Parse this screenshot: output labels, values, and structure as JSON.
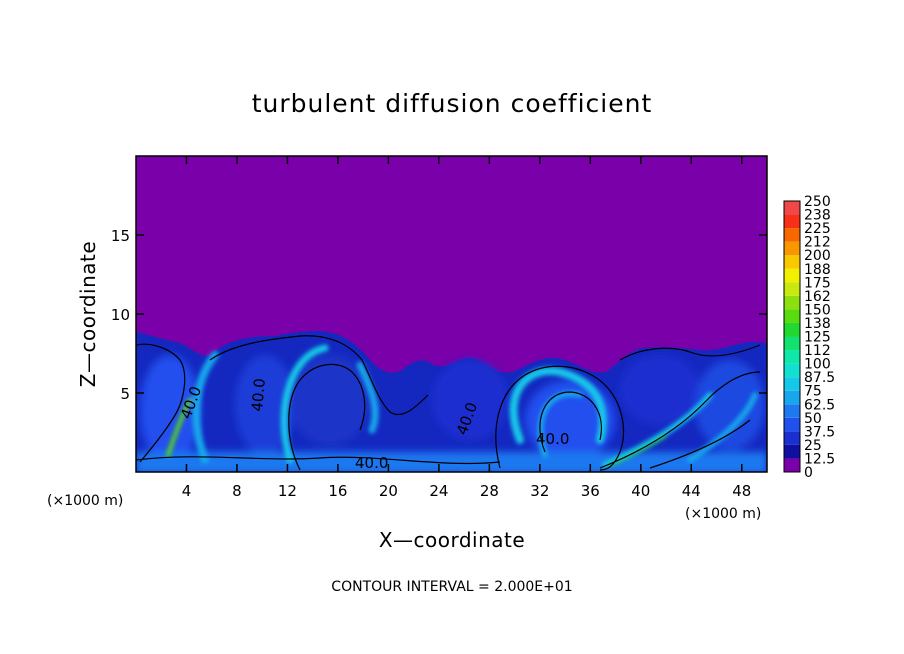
{
  "chart_data": {
    "type": "heatmap",
    "title": "turbulent diffusion coefficient",
    "xlabel": "X—coordinate",
    "ylabel": "Z—coordinate",
    "x_unit": "(×1000 m)",
    "y_unit": "(×1000 m)",
    "xlim": [
      0,
      50
    ],
    "ylim": [
      0,
      20
    ],
    "x_ticks": [
      4,
      8,
      12,
      16,
      20,
      24,
      28,
      32,
      36,
      40,
      44,
      48
    ],
    "y_ticks": [
      5,
      10,
      15
    ],
    "colorbar": {
      "levels": [
        "0",
        "12.5",
        "25",
        "37.5",
        "50",
        "62.5",
        "75",
        "87.5",
        "100",
        "112",
        "125",
        "138",
        "150",
        "162",
        "175",
        "188",
        "200",
        "212",
        "225",
        "238",
        "250"
      ],
      "colors": [
        "#7a00aa",
        "#1010a0",
        "#1a2fd0",
        "#2050ee",
        "#1e78f0",
        "#18a6ec",
        "#16c8e8",
        "#12e0d0",
        "#10e8a8",
        "#14e070",
        "#20d830",
        "#58dc10",
        "#8ce010",
        "#c8e810",
        "#f0f000",
        "#f8c800",
        "#f89800",
        "#f86800",
        "#f83018",
        "#f04848",
        "#f08c8c"
      ]
    },
    "contour_labels": [
      "40.0",
      "40.0",
      "40.0",
      "40.0",
      "40.0"
    ],
    "footer": "CONTOUR INTERVAL = 2.000E+01",
    "background_color": "#7a00aa"
  }
}
